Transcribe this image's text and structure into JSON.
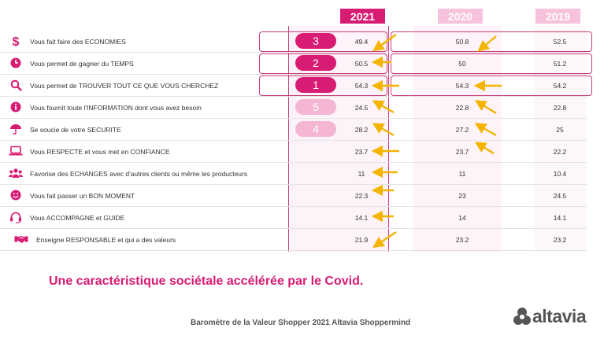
{
  "years": [
    "2021",
    "2020",
    "2019"
  ],
  "rows": [
    {
      "icon": "dollar-icon",
      "label": "Vous fait faire des ECONOMIES",
      "v2021": "49.4",
      "v2020": "50.8",
      "v2019": "52.5",
      "rank": "3"
    },
    {
      "icon": "clock-icon",
      "label": "Vous permet de gagner du TEMPS",
      "v2021": "50.5",
      "v2020": "50",
      "v2019": "51.2",
      "rank": "2"
    },
    {
      "icon": "magnifier-icon",
      "label": "Vous permet de TROUVER TOUT CE QUE VOUS CHERCHEZ",
      "v2021": "54.3",
      "v2020": "54.3",
      "v2019": "54.2",
      "rank": "1"
    },
    {
      "icon": "info-icon",
      "label": "Vous fournit toute l'INFORMATION dont vous avez besoin",
      "v2021": "24.5",
      "v2020": "22.8",
      "v2019": "22.8",
      "rank": "5"
    },
    {
      "icon": "umbrella-icon",
      "label": "Se soucie de votre SECURITE",
      "v2021": "28.2",
      "v2020": "27.2",
      "v2019": "25",
      "rank": "4"
    },
    {
      "icon": "laptop-icon",
      "label": "Vous RESPECTE et vous met en CONFIANCE",
      "v2021": "23.7",
      "v2020": "23.7",
      "v2019": "22.2",
      "rank": ""
    },
    {
      "icon": "people-icon",
      "label": "Favorise des ECHANGES avec d'autres clients ou même les producteurs",
      "v2021": "11",
      "v2020": "11",
      "v2019": "10.4",
      "rank": ""
    },
    {
      "icon": "smiley-icon",
      "label": "Vous fait passer un BON MOMENT",
      "v2021": "22.3",
      "v2020": "23",
      "v2019": "24.5",
      "rank": ""
    },
    {
      "icon": "headset-icon",
      "label": "Vous ACCOMPAGNE et GUIDE",
      "v2021": "14.1",
      "v2020": "14",
      "v2019": "14.1",
      "rank": ""
    },
    {
      "icon": "handshake-icon",
      "label": "Enseigne RESPONSABLE et qui a des valeurs",
      "v2021": "21.9",
      "v2020": "23.2",
      "v2019": "23.2",
      "rank": ""
    }
  ],
  "headline": "Une caractéristique sociétale accélérée par le Covid.",
  "footer": "Baromètre de la Valeur Shopper 2021 Altavia Shoppermind",
  "logo_text": "altavia",
  "colors": {
    "magenta": "#d81b73",
    "pink_header": "#f6c2dc",
    "pink_light": "#f4b6d2",
    "arrow": "#f4b400",
    "col_tint": "#fdeef5"
  }
}
